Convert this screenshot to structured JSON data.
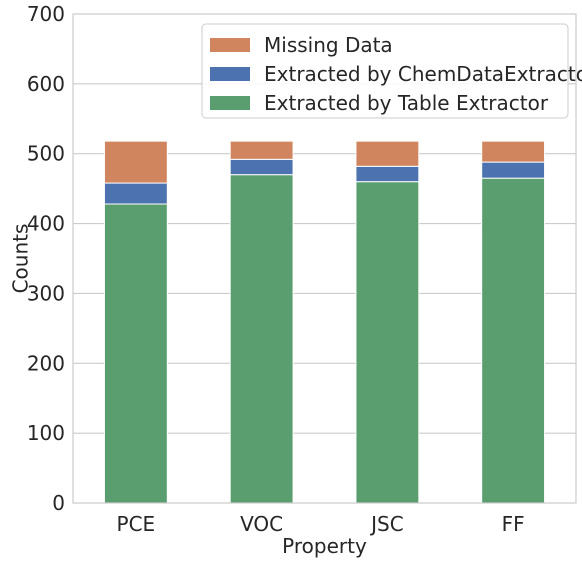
{
  "chart_data": {
    "type": "bar",
    "stacked": true,
    "title": "",
    "xlabel": "Property",
    "ylabel": "Counts",
    "categories": [
      "PCE",
      "VOC",
      "JSC",
      "FF"
    ],
    "ylim": [
      0,
      700
    ],
    "yticks": [
      0,
      100,
      200,
      300,
      400,
      500,
      600,
      700
    ],
    "grid": true,
    "legend_position": "upper right",
    "series": [
      {
        "name": "Extracted by Table Extractor",
        "color": "#5a9e6f",
        "values": [
          428,
          470,
          460,
          465
        ]
      },
      {
        "name": "Extracted by ChemDataExtractor",
        "color": "#4c72b0",
        "values": [
          30,
          22,
          22,
          23
        ]
      },
      {
        "name": "Missing Data",
        "color": "#d0855f",
        "values": [
          60,
          26,
          36,
          30
        ]
      }
    ],
    "legend_order": [
      2,
      1,
      0
    ]
  }
}
